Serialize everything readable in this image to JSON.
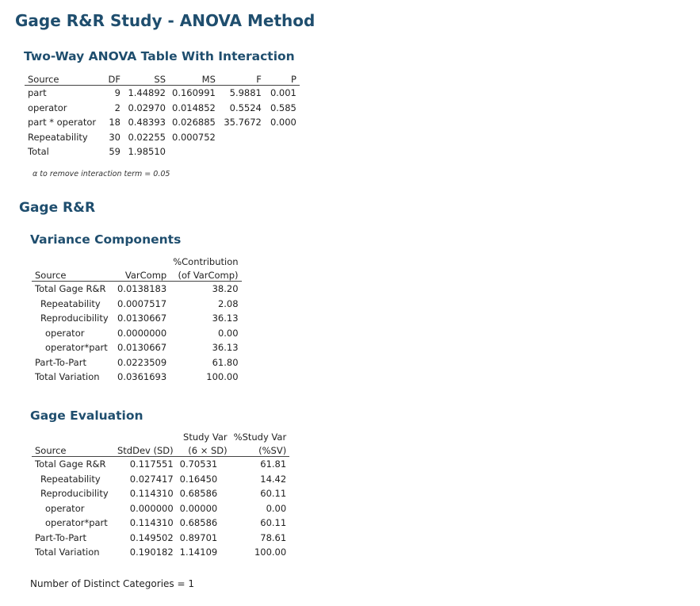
{
  "title": "Gage R&R Study - ANOVA Method",
  "anova": {
    "heading": "Two-Way ANOVA Table With Interaction",
    "columns": [
      "Source",
      "DF",
      "SS",
      "MS",
      "F",
      "P"
    ],
    "rows": [
      [
        "part",
        "9",
        "1.44892",
        "0.160991",
        "5.9881",
        "0.001"
      ],
      [
        "operator",
        "2",
        "0.02970",
        "0.014852",
        "0.5524",
        "0.585"
      ],
      [
        "part * operator",
        "18",
        "0.48393",
        "0.026885",
        "35.7672",
        "0.000"
      ],
      [
        "Repeatability",
        "30",
        "0.02255",
        "0.000752",
        "",
        ""
      ],
      [
        "Total",
        "59",
        "1.98510",
        "",
        "",
        ""
      ]
    ],
    "note": "α to remove interaction term = 0.05"
  },
  "gage_rr_heading": "Gage R&R",
  "variance_components": {
    "heading": "Variance Components",
    "header_top": [
      "",
      "",
      "%Contribution"
    ],
    "columns": [
      "Source",
      "VarComp",
      "(of VarComp)"
    ],
    "rows": [
      [
        "Total Gage R&R",
        "0.0138183",
        "38.20"
      ],
      [
        "Repeatability",
        "0.0007517",
        "2.08"
      ],
      [
        "Reproducibility",
        "0.0130667",
        "36.13"
      ],
      [
        "operator",
        "0.0000000",
        "0.00"
      ],
      [
        "operator*part",
        "0.0130667",
        "36.13"
      ],
      [
        "Part-To-Part",
        "0.0223509",
        "61.80"
      ],
      [
        "Total Variation",
        "0.0361693",
        "100.00"
      ]
    ]
  },
  "gage_evaluation": {
    "heading": "Gage Evaluation",
    "header_top": [
      "",
      "",
      "Study Var",
      "%Study Var"
    ],
    "columns": [
      "Source",
      "StdDev (SD)",
      "(6 × SD)",
      "(%SV)"
    ],
    "rows": [
      [
        "Total Gage R&R",
        "0.117551",
        "0.70531",
        "61.81"
      ],
      [
        "Repeatability",
        "0.027417",
        "0.16450",
        "14.42"
      ],
      [
        "Reproducibility",
        "0.114310",
        "0.68586",
        "60.11"
      ],
      [
        "operator",
        "0.000000",
        "0.00000",
        "0.00"
      ],
      [
        "operator*part",
        "0.114310",
        "0.68586",
        "60.11"
      ],
      [
        "Part-To-Part",
        "0.149502",
        "0.89701",
        "78.61"
      ],
      [
        "Total Variation",
        "0.190182",
        "1.14109",
        "100.00"
      ]
    ]
  },
  "distinct_categories": "Number of Distinct Categories = 1"
}
